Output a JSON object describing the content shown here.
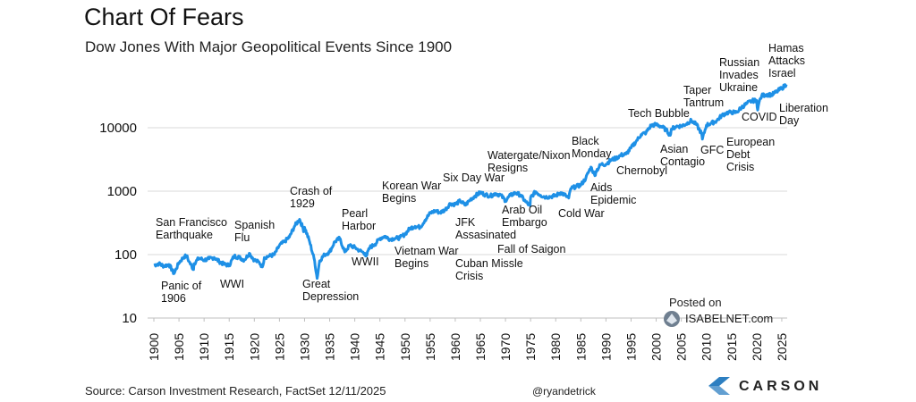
{
  "title": "Chart Of Fears",
  "subtitle": "Dow Jones With Major Geopolitical Events Since 1900",
  "source": "Source: Carson Investment Research, FactSet 12/11/2025",
  "handle": "@ryandetrick",
  "watermark": {
    "label": "Posted on",
    "brand": "ISABELNET.com"
  },
  "brand": {
    "name": "CARSON",
    "color": "#2d7fc1"
  },
  "chart_data": {
    "type": "line",
    "title": "Chart Of Fears",
    "subtitle": "Dow Jones With Major Geopolitical Events Since 1900",
    "xlabel": "",
    "ylabel": "",
    "yscale": "log",
    "xlim": [
      1900,
      2025.9
    ],
    "ylim": [
      10,
      70000
    ],
    "grid": "horizontal",
    "line_color": "#1e90e6",
    "yticks": [
      10,
      100,
      1000,
      10000
    ],
    "ytick_labels": [
      "10",
      "100",
      "1000",
      "10000"
    ],
    "xticks": [
      "1900",
      "1905",
      "1910",
      "1915",
      "1920",
      "1925",
      "1930",
      "1935",
      "1940",
      "1945",
      "1950",
      "1955",
      "1960",
      "1965",
      "1970",
      "1975",
      "1980",
      "1985",
      "1990",
      "1995",
      "2000",
      "2005",
      "2010",
      "2015",
      "2020",
      "2025"
    ],
    "series": [
      {
        "name": "Dow Jones",
        "x": [
          1900,
          1901,
          1902,
          1903,
          1904,
          1905,
          1906,
          1906.5,
          1907,
          1907.9,
          1908,
          1909,
          1910,
          1911,
          1912,
          1913,
          1914,
          1915,
          1916,
          1917,
          1918,
          1919,
          1920,
          1921,
          1921.6,
          1922,
          1923,
          1924,
          1925,
          1926,
          1927,
          1928,
          1929,
          1929.7,
          1929.9,
          1930,
          1931,
          1932,
          1932.5,
          1933,
          1934,
          1935,
          1936,
          1937,
          1938,
          1939,
          1940,
          1941,
          1942,
          1942.3,
          1943,
          1944,
          1945,
          1946,
          1947,
          1948,
          1949,
          1950,
          1951,
          1952,
          1953,
          1954,
          1955,
          1956,
          1957,
          1958,
          1959,
          1960,
          1961,
          1962,
          1963,
          1964,
          1965,
          1966,
          1967,
          1968,
          1969,
          1970,
          1971,
          1972,
          1973,
          1974,
          1974.9,
          1975,
          1976,
          1977,
          1978,
          1979,
          1980,
          1981,
          1982,
          1982.6,
          1983,
          1984,
          1985,
          1986,
          1987,
          1987.8,
          1988,
          1989,
          1990,
          1991,
          1992,
          1993,
          1994,
          1995,
          1996,
          1997,
          1998,
          1999,
          2000,
          2001,
          2002,
          2002.8,
          2003,
          2004,
          2005,
          2006,
          2007,
          2008,
          2009,
          2009.2,
          2010,
          2011,
          2012,
          2013,
          2014,
          2015,
          2016,
          2017,
          2018,
          2019,
          2020,
          2020.2,
          2020.5,
          2021,
          2022,
          2023,
          2024,
          2025,
          2025.9
        ],
        "values": [
          68,
          72,
          66,
          70,
          50,
          75,
          92,
          96,
          78,
          58,
          72,
          88,
          82,
          86,
          90,
          78,
          70,
          68,
          95,
          90,
          82,
          105,
          82,
          75,
          64,
          90,
          95,
          100,
          140,
          160,
          190,
          280,
          360,
          260,
          230,
          270,
          160,
          80,
          42,
          80,
          100,
          110,
          160,
          180,
          110,
          140,
          130,
          115,
          105,
          95,
          130,
          145,
          180,
          195,
          175,
          180,
          185,
          210,
          260,
          280,
          270,
          350,
          450,
          490,
          460,
          510,
          640,
          620,
          700,
          600,
          740,
          850,
          950,
          880,
          840,
          920,
          870,
          710,
          860,
          940,
          870,
          680,
          590,
          800,
          980,
          860,
          810,
          820,
          850,
          950,
          850,
          780,
          1100,
          1180,
          1250,
          1600,
          2400,
          1750,
          2050,
          2650,
          2650,
          3100,
          3300,
          3700,
          3850,
          4800,
          6100,
          7800,
          8400,
          10900,
          11200,
          10500,
          9200,
          7600,
          9500,
          10500,
          10650,
          11500,
          13000,
          11200,
          8200,
          6600,
          11000,
          11800,
          12800,
          15500,
          17200,
          17500,
          17500,
          21000,
          23900,
          26500,
          27000,
          19000,
          25500,
          32000,
          33500,
          33000,
          37000,
          42000,
          48000
        ]
      }
    ],
    "annotations": [
      {
        "text": "San Francisco\nEarthquake",
        "year": 1906
      },
      {
        "text": "Panic of\n1906",
        "year": 1906
      },
      {
        "text": "WWI",
        "year": 1914
      },
      {
        "text": "Spanish\nFlu",
        "year": 1918
      },
      {
        "text": "Crash of\n1929",
        "year": 1929
      },
      {
        "text": "Great\nDepression",
        "year": 1932
      },
      {
        "text": "Pearl\nHarbor",
        "year": 1941
      },
      {
        "text": "WWII",
        "year": 1942
      },
      {
        "text": "Korean War\nBegins",
        "year": 1950
      },
      {
        "text": "Vietnam War\nBegins",
        "year": 1955
      },
      {
        "text": "Six Day War",
        "year": 1967
      },
      {
        "text": "JFK\nAssasinated",
        "year": 1963
      },
      {
        "text": "Cuban Missle\nCrisis",
        "year": 1962
      },
      {
        "text": "Watergate/Nixon\nResigns",
        "year": 1974
      },
      {
        "text": "Arab Oil\nEmbargo",
        "year": 1973
      },
      {
        "text": "Fall of Saigon",
        "year": 1975
      },
      {
        "text": "Cold War",
        "year": 1983
      },
      {
        "text": "Black\nMonday",
        "year": 1987
      },
      {
        "text": "Aids\nEpidemic",
        "year": 1987
      },
      {
        "text": "Chernobyl",
        "year": 1986
      },
      {
        "text": "Tech Bubble",
        "year": 2000
      },
      {
        "text": "Asian\nContagio",
        "year": 1997
      },
      {
        "text": "Taper\nTantrum",
        "year": 2013
      },
      {
        "text": "GFC",
        "year": 2008
      },
      {
        "text": "European\nDebt\nCrisis",
        "year": 2011
      },
      {
        "text": "Russian\nInvades\nUkraine",
        "year": 2022
      },
      {
        "text": "COVID",
        "year": 2020
      },
      {
        "text": "Hamas\nAttacks\nIsrael",
        "year": 2023
      },
      {
        "text": "Liberation\nDay",
        "year": 2025
      }
    ]
  }
}
